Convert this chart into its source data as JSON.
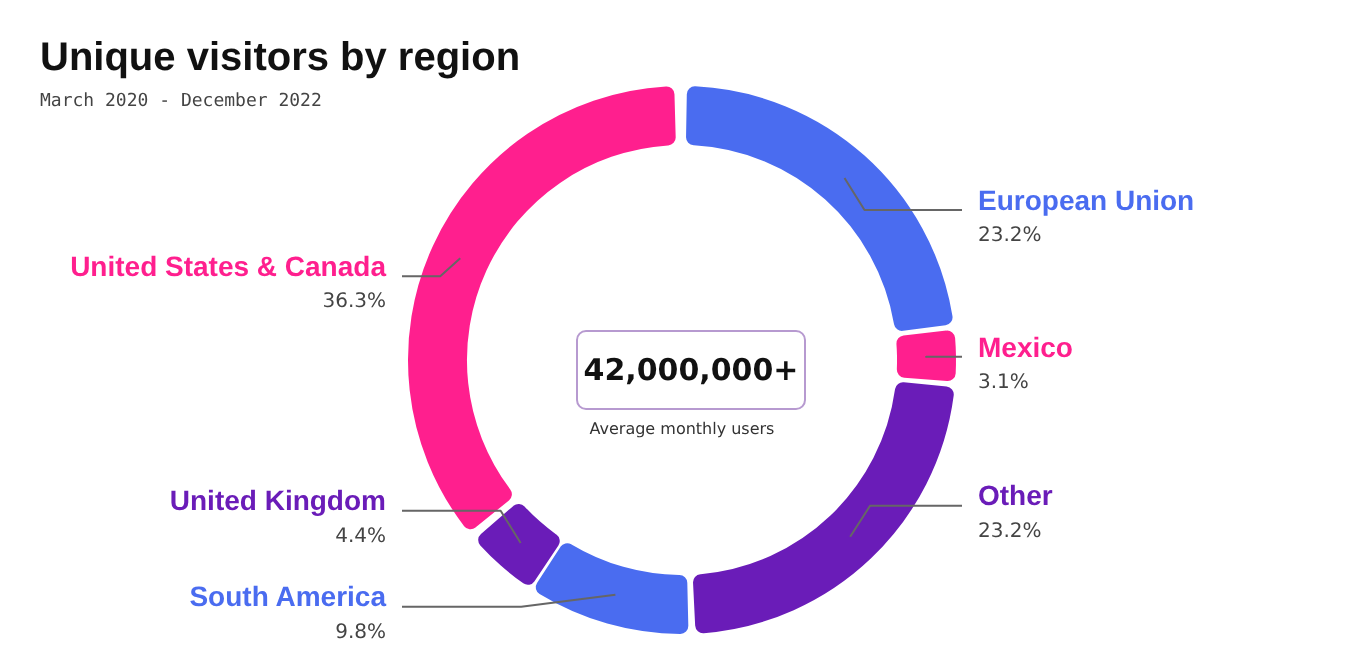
{
  "chart_data": {
    "type": "donut",
    "title": "Unique visitors by region",
    "subtitle": "March 2020 - December 2022",
    "categories": [
      "European Union",
      "Mexico",
      "Other",
      "South America",
      "United Kingdom",
      "United States & Canada"
    ],
    "values": [
      23.2,
      3.1,
      23.2,
      9.8,
      4.4,
      36.3
    ],
    "colors": [
      "#4a6cf0",
      "#ff1f8e",
      "#6a1cb8",
      "#4a6cf0",
      "#6a1cb8",
      "#ff1f8e"
    ],
    "value_labels": [
      "23.2%",
      "3.1%",
      "23.2%",
      "9.8%",
      "4.4%",
      "36.3%"
    ],
    "annotations": [
      "42,000,000+",
      "Average monthly users"
    ],
    "legend": false
  }
}
